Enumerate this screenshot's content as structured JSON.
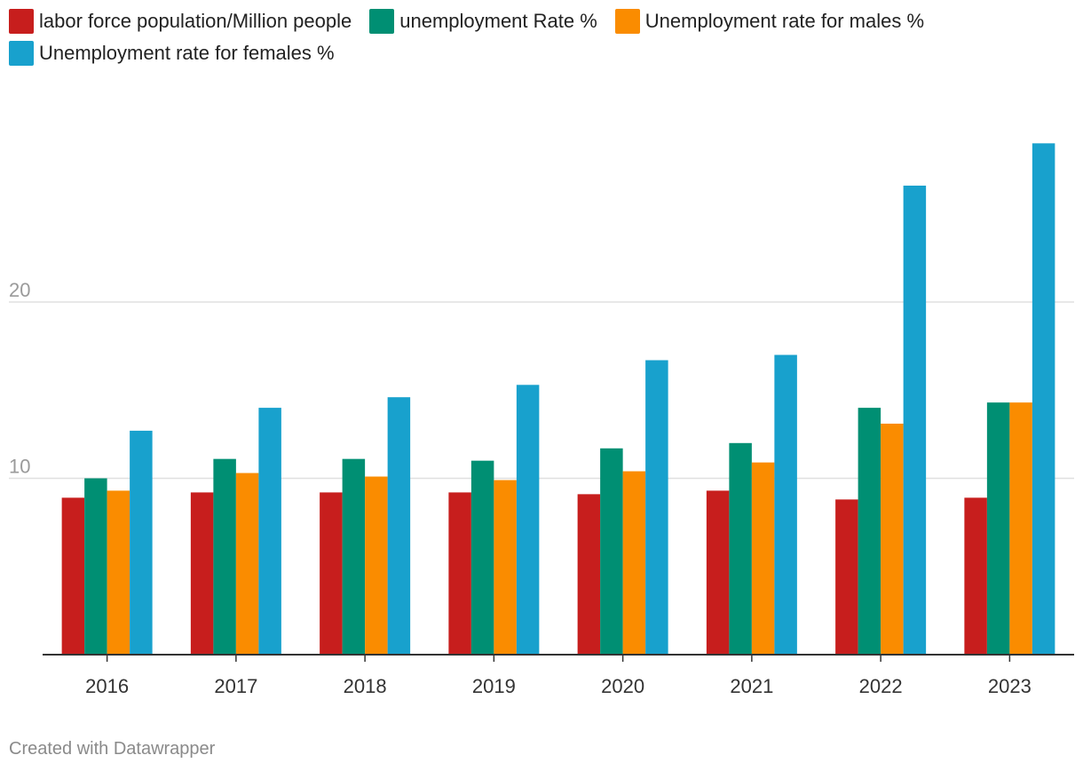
{
  "chart_data": {
    "type": "bar",
    "categories": [
      "2016",
      "2017",
      "2018",
      "2019",
      "2020",
      "2021",
      "2022",
      "2023"
    ],
    "series": [
      {
        "name": "labor force population/Million people",
        "color": "#c71e1d",
        "values": [
          8.9,
          9.2,
          9.2,
          9.2,
          9.1,
          9.3,
          8.8,
          8.9
        ]
      },
      {
        "name": "unemployment Rate %",
        "color": "#008f73",
        "values": [
          10.0,
          11.1,
          11.1,
          11.0,
          11.7,
          12.0,
          14.0,
          14.3
        ]
      },
      {
        "name": "Unemployment rate for males %",
        "color": "#fa8c00",
        "values": [
          9.3,
          10.3,
          10.1,
          9.9,
          10.4,
          10.9,
          13.1,
          14.3
        ]
      },
      {
        "name": "Unemployment rate for females %",
        "color": "#18a1cd",
        "values": [
          12.7,
          14.0,
          14.6,
          15.3,
          16.7,
          17.0,
          26.6,
          29.0
        ]
      }
    ],
    "yticks": [
      10,
      20
    ],
    "ylim": [
      0,
      30
    ],
    "grid": true,
    "legend": "top-left"
  },
  "footer": "Created with Datawrapper"
}
